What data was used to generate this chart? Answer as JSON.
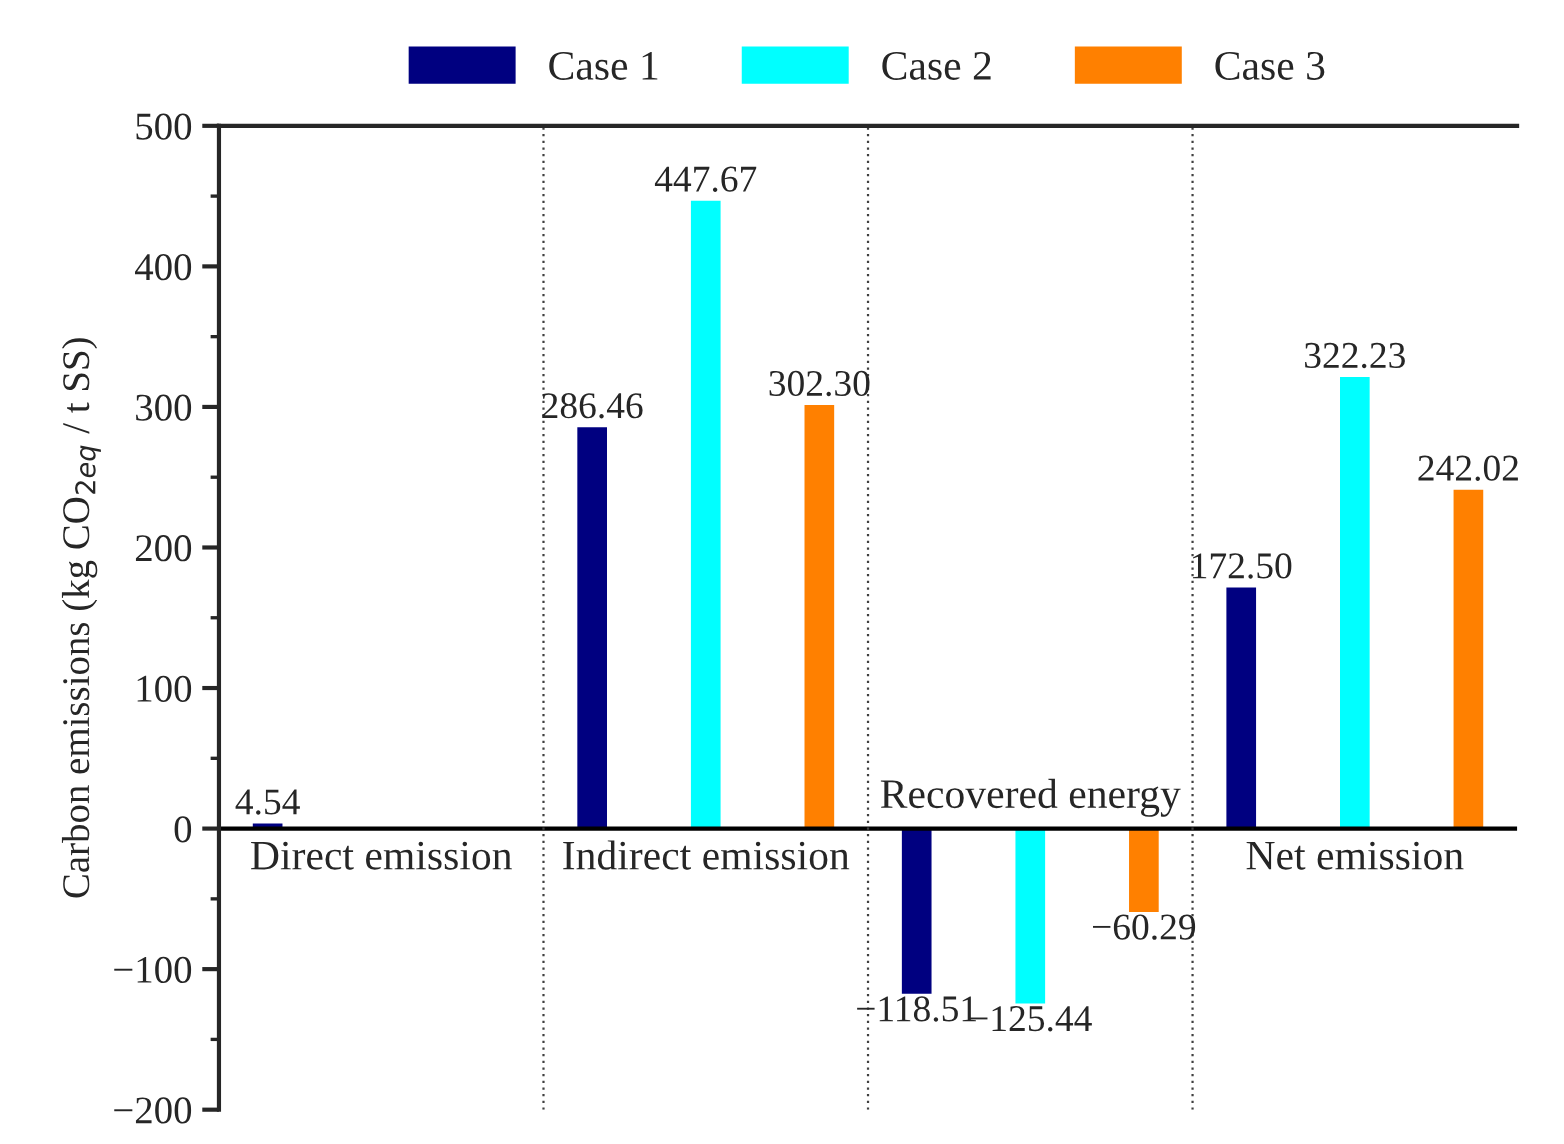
{
  "chart_data": {
    "type": "bar",
    "ylabel": "Carbon emissions (kg CO$_{2eq}$ / t SS)",
    "categories": [
      "Direct emission",
      "Indirect emission",
      "Recovered energy",
      "Net emission"
    ],
    "series": [
      {
        "name": "Case 1",
        "color": "#000080",
        "values": [
          4.54,
          286.46,
          -118.51,
          172.5
        ],
        "value_labels": [
          "4.54",
          "286.46",
          "−118.51",
          "172.50"
        ]
      },
      {
        "name": "Case 2",
        "color": "#00ffff",
        "values": [
          null,
          447.67,
          -125.44,
          322.23
        ],
        "value_labels": [
          null,
          "447.67",
          "−125.44",
          "322.23"
        ]
      },
      {
        "name": "Case 3",
        "color": "#ff8000",
        "values": [
          null,
          302.3,
          -60.29,
          242.02
        ],
        "value_labels": [
          null,
          "302.30",
          "−60.29",
          "242.02"
        ]
      }
    ],
    "ylim": [
      -200,
      500
    ],
    "yticks": [
      {
        "value": -200,
        "label": "−200"
      },
      {
        "value": -100,
        "label": "−100"
      },
      0,
      100,
      200,
      300,
      400,
      500
    ],
    "tick_labels": "y",
    "grid": "x",
    "legend": "top"
  }
}
